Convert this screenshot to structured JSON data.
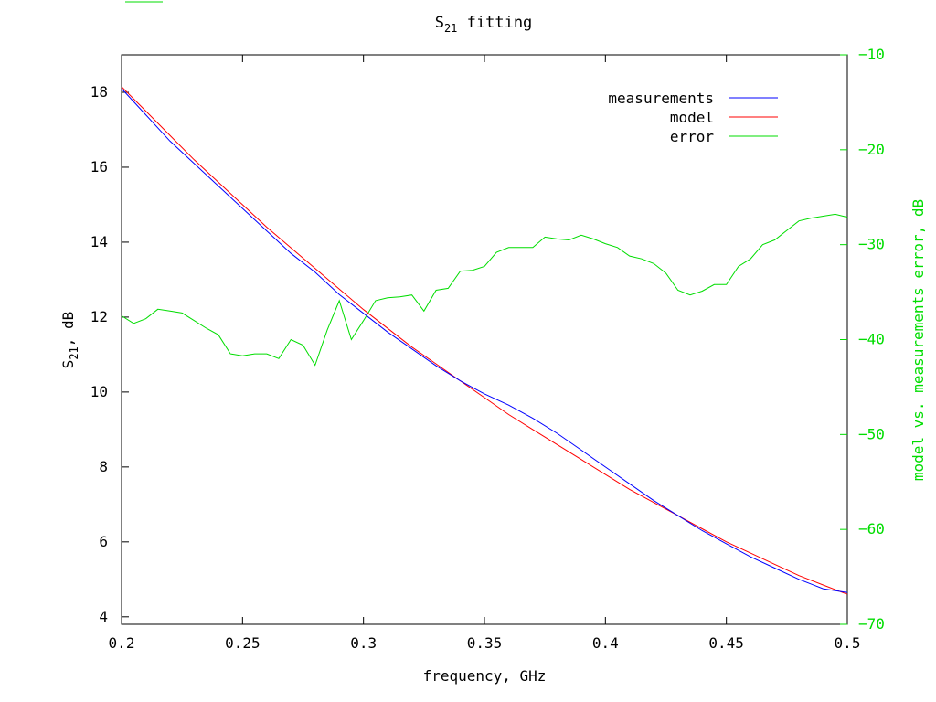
{
  "chart_data": {
    "type": "line",
    "title_base": "S",
    "title_sub": "21",
    "title_rest": " fitting",
    "xlabel": "frequency, GHz",
    "ylabel_base": "S",
    "ylabel_sub": "21",
    "ylabel_rest": ", dB",
    "y2label": "model vs. measurements error, dB",
    "xlim": [
      0.2,
      0.5
    ],
    "ylim": [
      3.8,
      19
    ],
    "y2lim": [
      -70,
      -10
    ],
    "xticks": [
      "0.2",
      "0.25",
      "0.3",
      "0.35",
      "0.4",
      "0.45",
      "0.5"
    ],
    "yticks": [
      "4",
      "6",
      "8",
      "10",
      "12",
      "14",
      "16",
      "18"
    ],
    "y2ticks": [
      "-10",
      "-20",
      "-30",
      "-40",
      "-50",
      "-60",
      "-70"
    ],
    "legend_position": "top-right",
    "colors": {
      "measurements": "#0000ff",
      "model": "#ff0000",
      "error": "#00dd00",
      "right_axis": "#00dd00"
    },
    "series": [
      {
        "name": "measurements",
        "axis": "left",
        "x": [
          0.2,
          0.21,
          0.22,
          0.23,
          0.24,
          0.25,
          0.26,
          0.27,
          0.28,
          0.29,
          0.3,
          0.31,
          0.32,
          0.33,
          0.34,
          0.35,
          0.36,
          0.37,
          0.38,
          0.39,
          0.4,
          0.41,
          0.42,
          0.43,
          0.44,
          0.45,
          0.46,
          0.47,
          0.48,
          0.49,
          0.5
        ],
        "values": [
          18.1,
          17.4,
          16.7,
          16.1,
          15.5,
          14.9,
          14.3,
          13.7,
          13.2,
          12.6,
          12.1,
          11.6,
          11.15,
          10.7,
          10.3,
          9.95,
          9.65,
          9.3,
          8.9,
          8.45,
          8.0,
          7.55,
          7.1,
          6.7,
          6.3,
          5.95,
          5.6,
          5.3,
          5.0,
          4.75,
          4.65
        ]
      },
      {
        "name": "model",
        "axis": "left",
        "x": [
          0.2,
          0.21,
          0.22,
          0.23,
          0.24,
          0.25,
          0.26,
          0.27,
          0.28,
          0.29,
          0.3,
          0.31,
          0.32,
          0.33,
          0.34,
          0.35,
          0.36,
          0.37,
          0.38,
          0.39,
          0.4,
          0.41,
          0.42,
          0.43,
          0.44,
          0.45,
          0.46,
          0.47,
          0.48,
          0.49,
          0.5
        ],
        "values": [
          18.15,
          17.5,
          16.85,
          16.2,
          15.6,
          15.0,
          14.4,
          13.85,
          13.3,
          12.75,
          12.2,
          11.7,
          11.2,
          10.75,
          10.3,
          9.85,
          9.4,
          9.0,
          8.6,
          8.2,
          7.8,
          7.4,
          7.05,
          6.7,
          6.35,
          6.0,
          5.7,
          5.4,
          5.1,
          4.85,
          4.6
        ]
      },
      {
        "name": "error",
        "axis": "right",
        "x": [
          0.2,
          0.205,
          0.21,
          0.215,
          0.22,
          0.225,
          0.23,
          0.235,
          0.24,
          0.245,
          0.25,
          0.255,
          0.26,
          0.265,
          0.27,
          0.275,
          0.28,
          0.285,
          0.29,
          0.295,
          0.3,
          0.305,
          0.31,
          0.315,
          0.32,
          0.325,
          0.33,
          0.335,
          0.34,
          0.345,
          0.35,
          0.355,
          0.36,
          0.365,
          0.37,
          0.375,
          0.38,
          0.385,
          0.39,
          0.395,
          0.4,
          0.405,
          0.41,
          0.415,
          0.42,
          0.425,
          0.43,
          0.435,
          0.44,
          0.445,
          0.45,
          0.455,
          0.46,
          0.465,
          0.47,
          0.475,
          0.48,
          0.485,
          0.49,
          0.495,
          0.5
        ],
        "values": [
          -37.5,
          -38.3,
          -37.8,
          -36.8,
          -37.0,
          -37.2,
          -38.0,
          -38.8,
          -39.5,
          -41.5,
          -41.7,
          -41.5,
          -41.5,
          -42.0,
          -40.0,
          -40.6,
          -42.7,
          -39.0,
          -35.9,
          -40.0,
          -38.0,
          -35.9,
          -35.6,
          -35.5,
          -35.3,
          -37.0,
          -34.8,
          -34.6,
          -32.8,
          -32.7,
          -32.3,
          -30.8,
          -30.3,
          -30.3,
          -30.3,
          -29.2,
          -29.4,
          -29.5,
          -29.0,
          -29.4,
          -29.9,
          -30.3,
          -31.2,
          -31.5,
          -32.0,
          -33.0,
          -34.8,
          -35.3,
          -34.9,
          -34.2,
          -34.2,
          -32.3,
          -31.5,
          -30.0,
          -29.5,
          -28.5,
          -27.5,
          -27.2,
          -27.0,
          -26.8,
          -27.1
        ]
      }
    ]
  }
}
